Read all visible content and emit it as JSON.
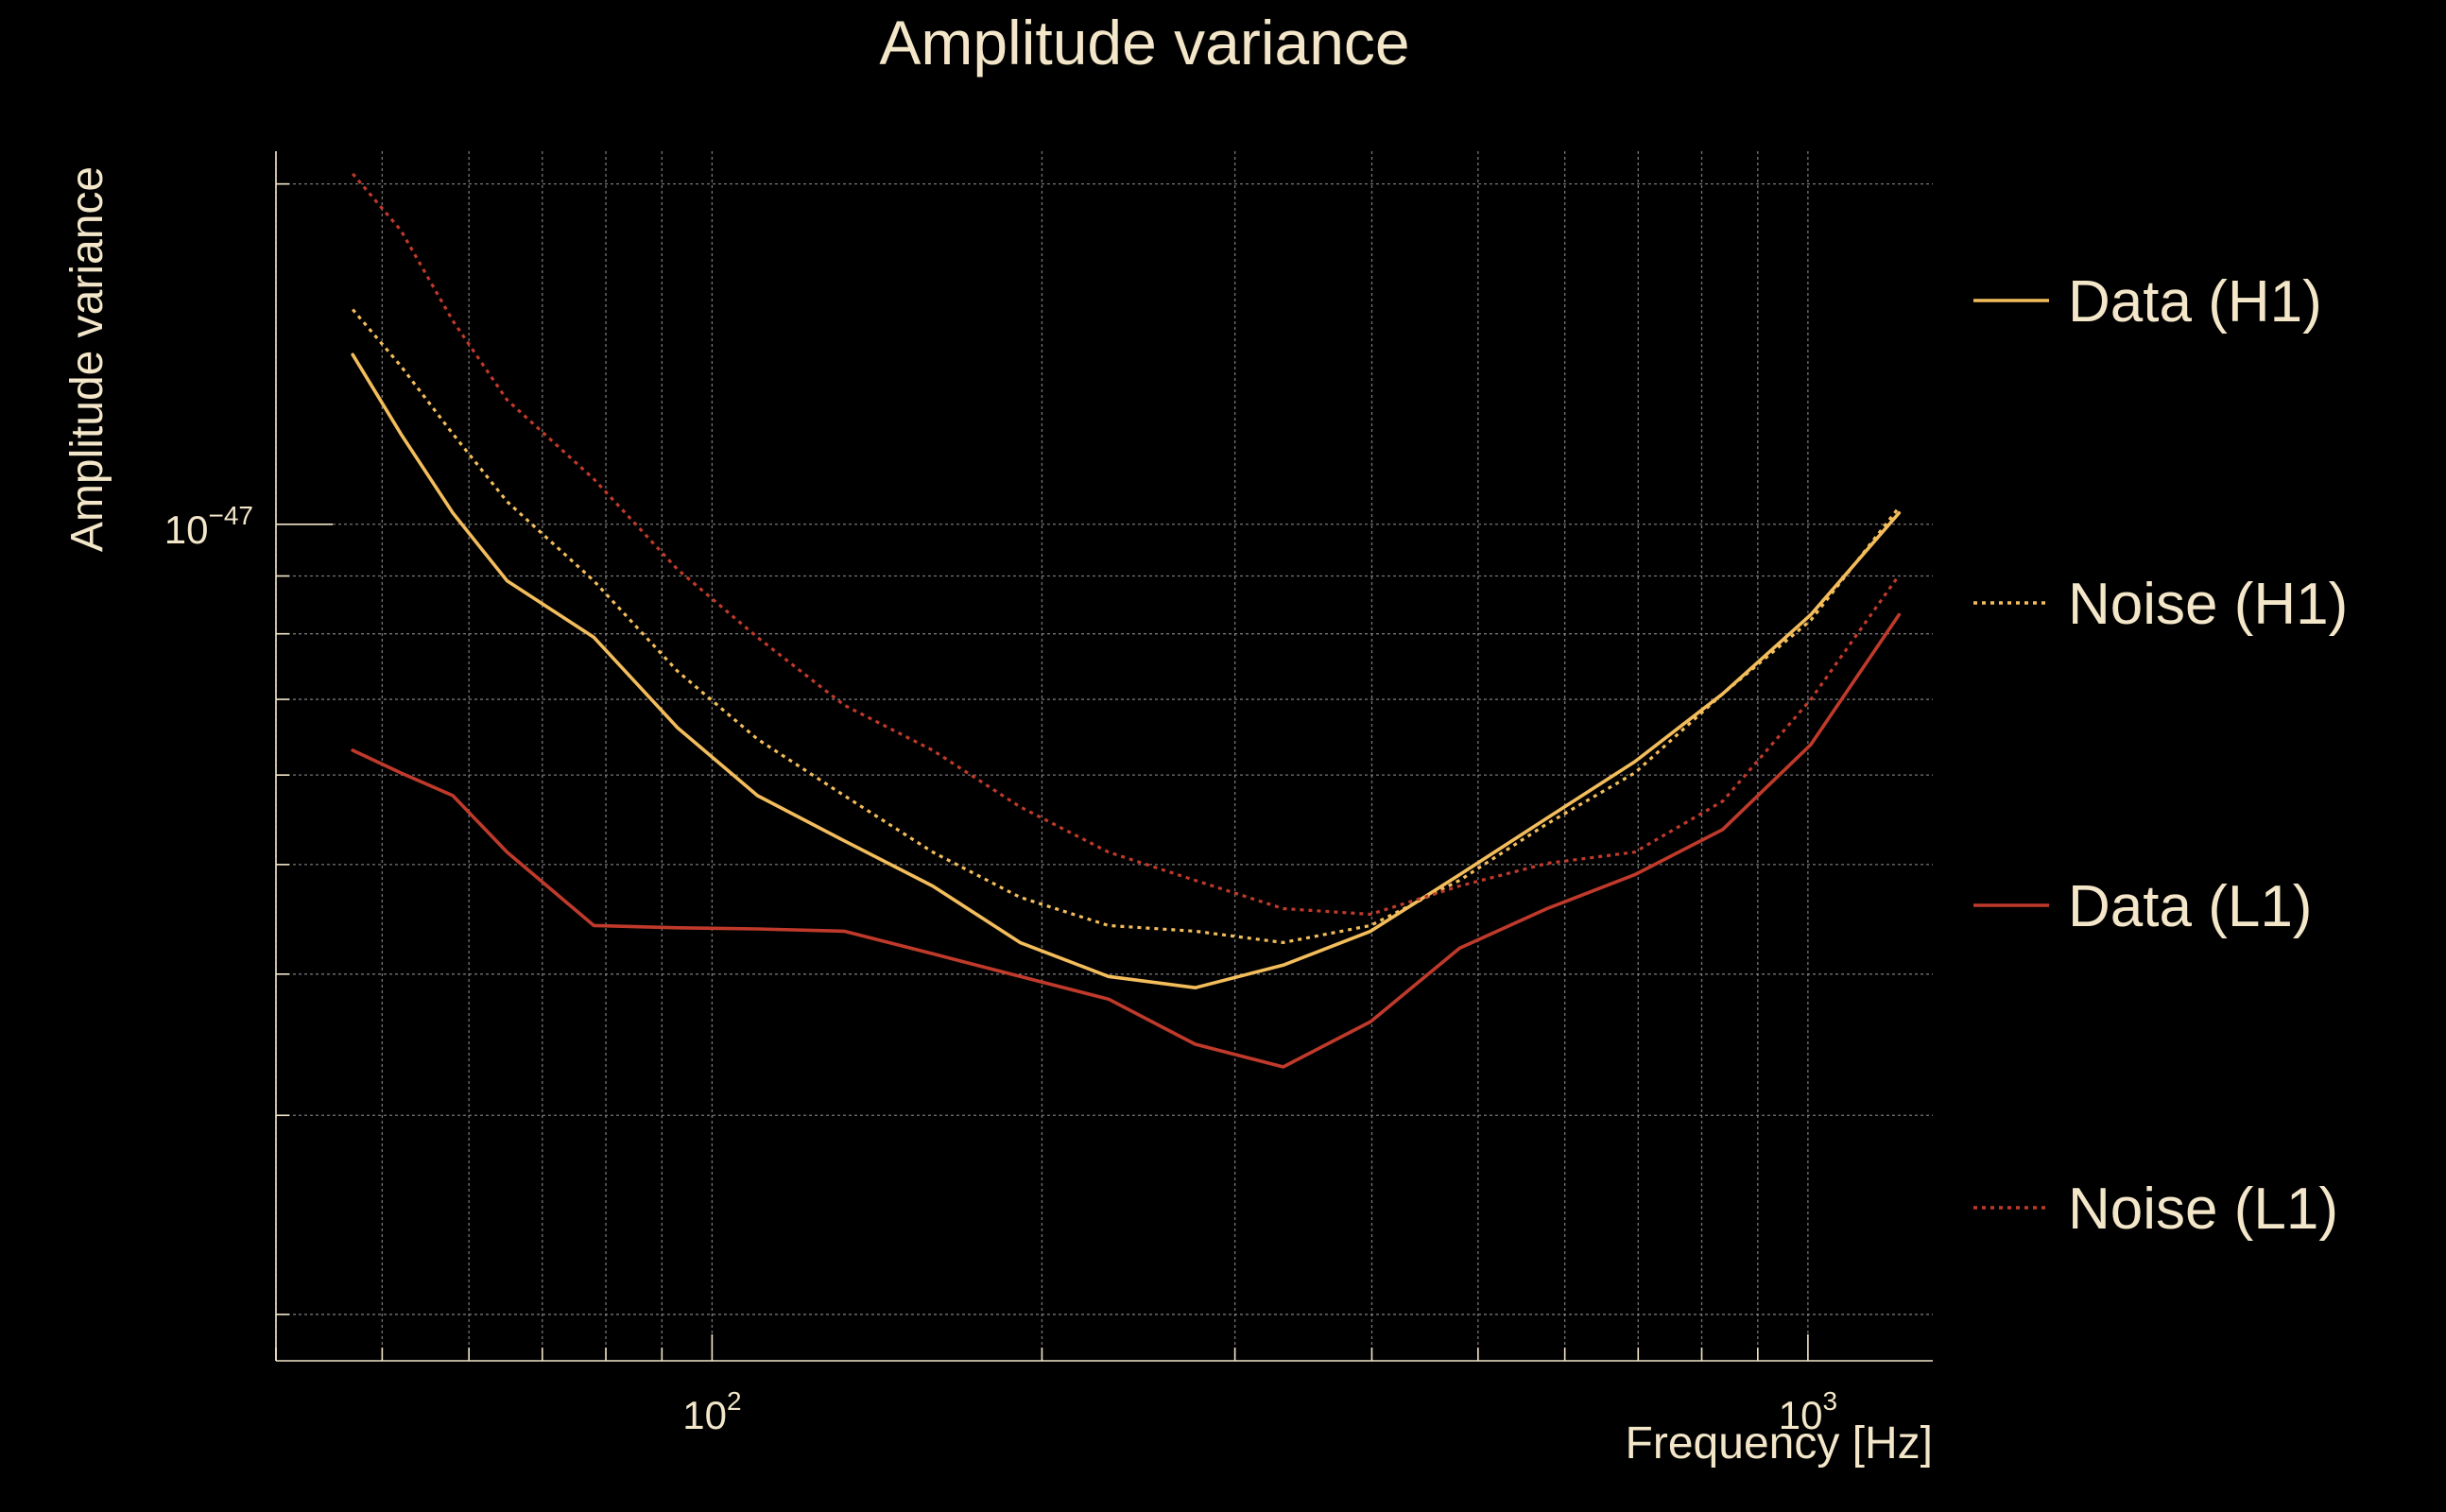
{
  "chart_data": {
    "type": "line",
    "title": "Amplitude variance",
    "xlabel": "Frequency [Hz]",
    "ylabel": "Amplitude variance",
    "xscale": "log",
    "yscale": "log",
    "xlim": [
      40,
      1300
    ],
    "ylim_exp": [
      -47.74,
      -46.67
    ],
    "x_tick_labels": [
      {
        "value": 100,
        "base": "10",
        "exp": "2"
      },
      {
        "value": 1000,
        "base": "10",
        "exp": "3"
      }
    ],
    "y_tick_labels": [
      {
        "value_exp": -47,
        "base": "10",
        "exp": "−47"
      }
    ],
    "grid": true,
    "legend_position": "right",
    "x": [
      47,
      52,
      58,
      65,
      78,
      93,
      110,
      132,
      159,
      191,
      230,
      276,
      332,
      399,
      481,
      578,
      695,
      836,
      1006,
      1211
    ],
    "series": [
      {
        "name": "Data (H1)",
        "color": "#f3bd5c",
        "style": "solid",
        "values_exp": [
          -46.85,
          -46.92,
          -46.99,
          -47.05,
          -47.1,
          -47.18,
          -47.24,
          -47.28,
          -47.32,
          -47.37,
          -47.4,
          -47.41,
          -47.39,
          -47.36,
          -47.31,
          -47.26,
          -47.21,
          -47.15,
          -47.08,
          -46.99
        ]
      },
      {
        "name": "Noise (H1)",
        "color": "#f3bd5c",
        "style": "dotted",
        "values_exp": [
          -46.81,
          -46.86,
          -46.92,
          -46.98,
          -47.05,
          -47.13,
          -47.19,
          -47.24,
          -47.29,
          -47.33,
          -47.355,
          -47.36,
          -47.37,
          -47.355,
          -47.315,
          -47.265,
          -47.22,
          -47.15,
          -47.085,
          -46.985
        ]
      },
      {
        "name": "Data (L1)",
        "color": "#c03a2b",
        "style": "solid",
        "values_exp": [
          -47.2,
          -47.22,
          -47.24,
          -47.29,
          -47.355,
          -47.357,
          -47.358,
          -47.36,
          -47.38,
          -47.4,
          -47.42,
          -47.46,
          -47.48,
          -47.44,
          -47.375,
          -47.34,
          -47.31,
          -47.27,
          -47.195,
          -47.08
        ]
      },
      {
        "name": "Noise (L1)",
        "color": "#c03a2b",
        "style": "dotted",
        "values_exp": [
          -46.69,
          -46.74,
          -46.82,
          -46.89,
          -46.96,
          -47.04,
          -47.1,
          -47.16,
          -47.2,
          -47.25,
          -47.29,
          -47.315,
          -47.34,
          -47.345,
          -47.32,
          -47.3,
          -47.29,
          -47.245,
          -47.155,
          -47.045
        ]
      }
    ]
  }
}
